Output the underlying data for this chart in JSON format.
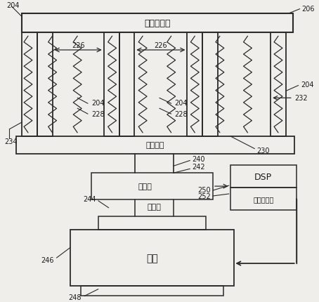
{
  "bg_color": "#f0eeea",
  "line_color": "#2a2a2a",
  "text_color": "#1a1a1a",
  "labels": {
    "semiconductor": "半导体晶片",
    "pin_platform": "销升降箕",
    "strain_gauge": "应变仪",
    "lead_screw": "导螺杆",
    "motor": "马达",
    "dsp": "DSP",
    "motor_ctrl": "马达控制器"
  },
  "fig_width": 4.54,
  "fig_height": 4.31,
  "dpi": 100
}
